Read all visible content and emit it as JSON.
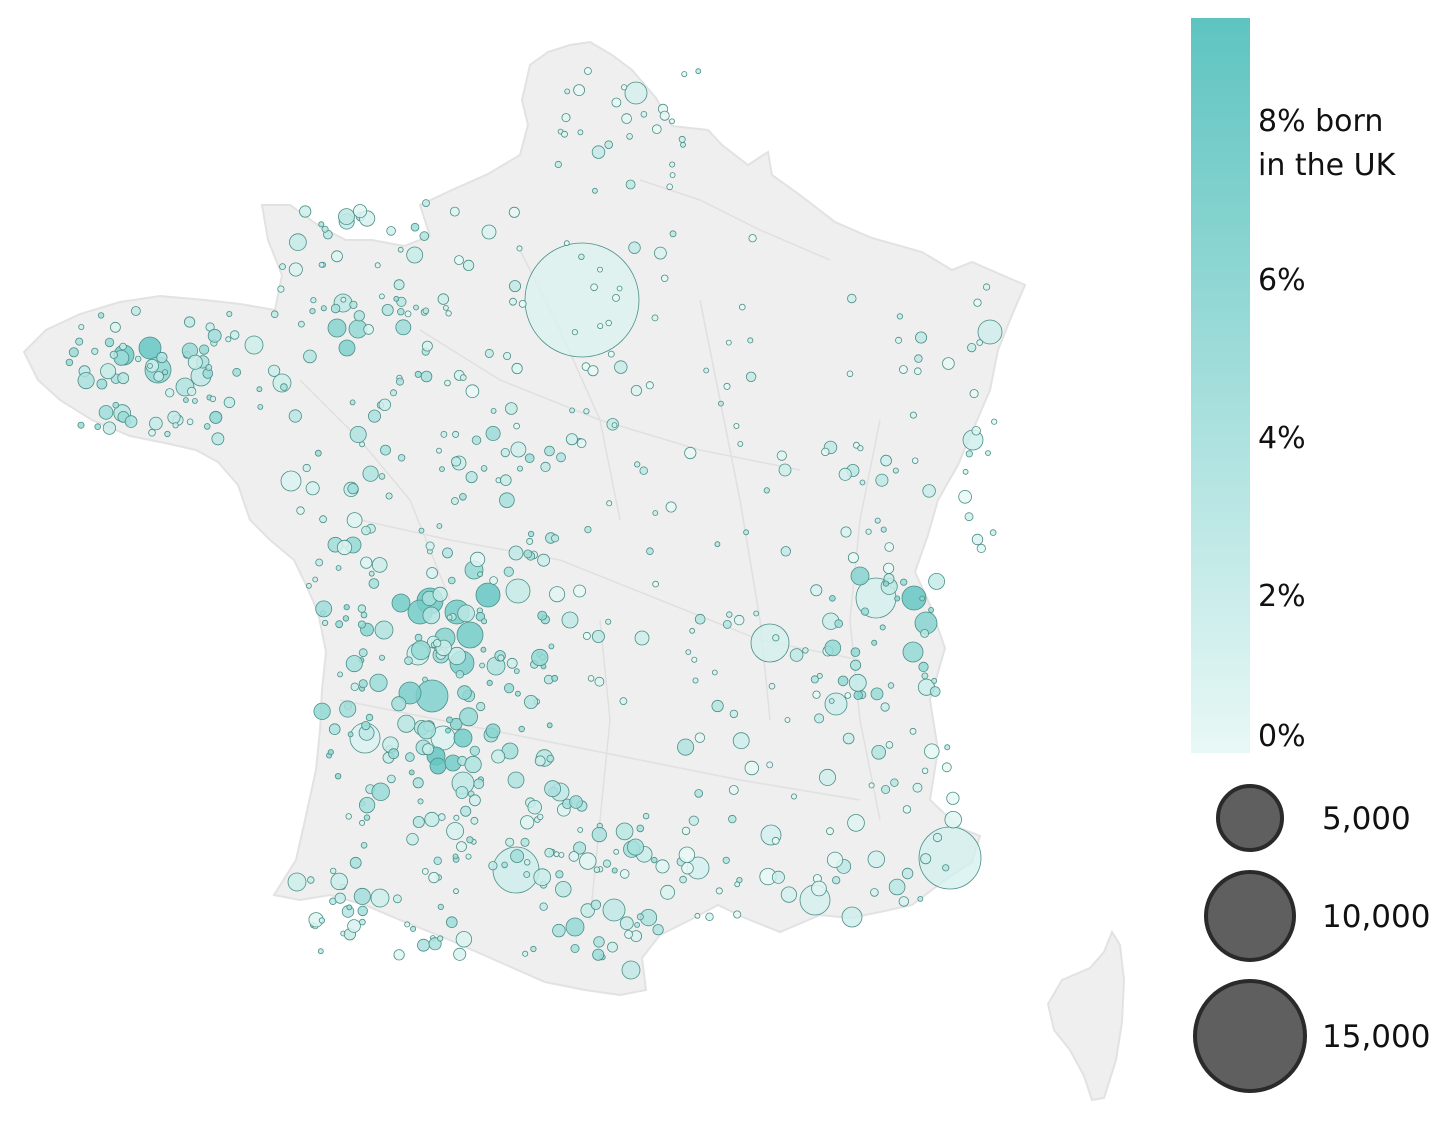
{
  "map": {
    "country": "France",
    "colors": {
      "land": "#efefef",
      "land_border": "#e2e2e2",
      "scale_high": "#5ec4c0",
      "scale_low": "#e8f8f6",
      "bubble_stroke": "#4a8f86",
      "size_bubble_fill": "#5f5f5f",
      "size_bubble_stroke": "#2a2a2a"
    }
  },
  "legend": {
    "color": {
      "title_line1": "8% born",
      "title_line2": "in the UK",
      "ticks": [
        "6%",
        "4%",
        "2%",
        "0%"
      ],
      "scale_domain": [
        0,
        9
      ]
    },
    "size": {
      "labels": [
        "5,000",
        "10,000",
        "15,000"
      ],
      "values": [
        5000,
        10000,
        15000
      ]
    }
  }
}
